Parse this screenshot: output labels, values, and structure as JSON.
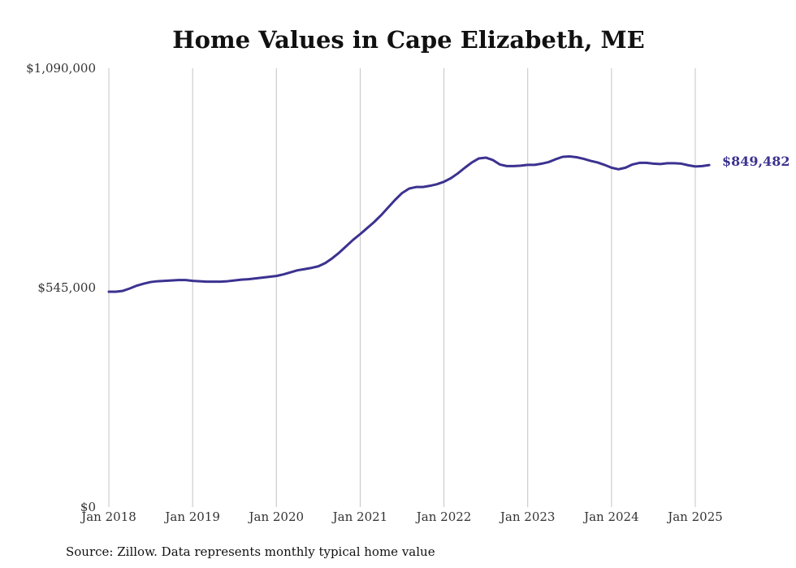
{
  "chart_data": {
    "type": "line",
    "title": "Home Values in Cape Elizabeth, ME",
    "xlabel": "",
    "ylabel": "",
    "ylim": [
      0,
      1090000
    ],
    "y_ticks": [
      {
        "value": 0,
        "label": "$0"
      },
      {
        "value": 545000,
        "label": "$545,000"
      },
      {
        "value": 1090000,
        "label": "$1,090,000"
      }
    ],
    "x_ticks": [
      {
        "value": "2018-01",
        "label": "Jan 2018"
      },
      {
        "value": "2019-01",
        "label": "Jan 2019"
      },
      {
        "value": "2020-01",
        "label": "Jan 2020"
      },
      {
        "value": "2021-01",
        "label": "Jan 2021"
      },
      {
        "value": "2022-01",
        "label": "Jan 2022"
      },
      {
        "value": "2023-01",
        "label": "Jan 2023"
      },
      {
        "value": "2024-01",
        "label": "Jan 2024"
      },
      {
        "value": "2025-01",
        "label": "Jan 2025"
      }
    ],
    "grid": {
      "vertical": true,
      "horizontal": false
    },
    "series": [
      {
        "color": "#3b3290",
        "x": [
          "2018-01",
          "2018-02",
          "2018-03",
          "2018-04",
          "2018-05",
          "2018-06",
          "2018-07",
          "2018-08",
          "2018-09",
          "2018-10",
          "2018-11",
          "2018-12",
          "2019-01",
          "2019-02",
          "2019-03",
          "2019-04",
          "2019-05",
          "2019-06",
          "2019-07",
          "2019-08",
          "2019-09",
          "2019-10",
          "2019-11",
          "2019-12",
          "2020-01",
          "2020-02",
          "2020-03",
          "2020-04",
          "2020-05",
          "2020-06",
          "2020-07",
          "2020-08",
          "2020-09",
          "2020-10",
          "2020-11",
          "2020-12",
          "2021-01",
          "2021-02",
          "2021-03",
          "2021-04",
          "2021-05",
          "2021-06",
          "2021-07",
          "2021-08",
          "2021-09",
          "2021-10",
          "2021-11",
          "2021-12",
          "2022-01",
          "2022-02",
          "2022-03",
          "2022-04",
          "2022-05",
          "2022-06",
          "2022-07",
          "2022-08",
          "2022-09",
          "2022-10",
          "2022-11",
          "2022-12",
          "2023-01",
          "2023-02",
          "2023-03",
          "2023-04",
          "2023-05",
          "2023-06",
          "2023-07",
          "2023-08",
          "2023-09",
          "2023-10",
          "2023-11",
          "2023-12",
          "2024-01",
          "2024-02",
          "2024-03",
          "2024-04",
          "2024-05",
          "2024-06",
          "2024-07",
          "2024-08",
          "2024-09",
          "2024-10",
          "2024-11",
          "2024-12",
          "2025-01",
          "2025-02",
          "2025-03"
        ],
        "values": [
          535000,
          535000,
          537000,
          543000,
          550000,
          555000,
          559000,
          561000,
          562000,
          563000,
          564000,
          564000,
          562000,
          561000,
          560000,
          560000,
          560000,
          561000,
          563000,
          565000,
          566000,
          568000,
          570000,
          572000,
          574000,
          578000,
          583000,
          588000,
          591000,
          594000,
          598000,
          606000,
          618000,
          632000,
          648000,
          664000,
          678000,
          693000,
          708000,
          725000,
          744000,
          763000,
          780000,
          791000,
          795000,
          795000,
          798000,
          802000,
          808000,
          817000,
          829000,
          843000,
          856000,
          866000,
          868000,
          862000,
          851000,
          847000,
          847000,
          848000,
          850000,
          850000,
          853000,
          857000,
          864000,
          870000,
          871000,
          869000,
          865000,
          860000,
          856000,
          850000,
          843000,
          839000,
          843000,
          851000,
          855000,
          855000,
          853000,
          852000,
          854000,
          854000,
          853000,
          849000,
          846000,
          847000,
          849482
        ]
      }
    ],
    "end_label": "$849,482",
    "source_note": "Source: Zillow. Data represents monthly typical home value"
  }
}
